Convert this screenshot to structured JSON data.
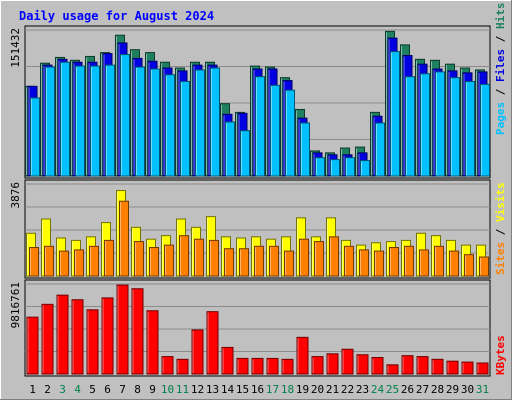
{
  "chart_data": {
    "type": "bar",
    "title": "Daily usage for August 2024",
    "categories": [
      "1",
      "2",
      "3",
      "4",
      "5",
      "6",
      "7",
      "8",
      "9",
      "10",
      "11",
      "12",
      "13",
      "14",
      "15",
      "16",
      "17",
      "18",
      "19",
      "20",
      "21",
      "22",
      "23",
      "24",
      "25",
      "26",
      "27",
      "28",
      "29",
      "30",
      "31"
    ],
    "weekend_days": [
      "3",
      "4",
      "10",
      "11",
      "17",
      "18",
      "24",
      "25",
      "31"
    ],
    "panels": [
      {
        "name": "hits",
        "max_label": "151432",
        "ylim": [
          0,
          151432
        ],
        "series": [
          {
            "name": "Hits",
            "color": "#1f8060",
            "values": [
              93000,
              117000,
              123000,
              120000,
              124000,
              128000,
              146000,
              131000,
              128000,
              118000,
              112000,
              118000,
              118000,
              75000,
              66000,
              114000,
              113000,
              102000,
              69000,
              26000,
              24000,
              29000,
              30000,
              66000,
              150000,
              136000,
              121000,
              120000,
              116000,
              112000,
              110000
            ]
          },
          {
            "name": "Files",
            "color": "#0000e0",
            "values": [
              93000,
              115000,
              121000,
              118000,
              118000,
              127000,
              138000,
              122000,
              119000,
              112000,
              109000,
              115000,
              115000,
              64000,
              65000,
              111000,
              111000,
              99000,
              60000,
              24000,
              22000,
              22000,
              24000,
              62000,
              143000,
              125000,
              116000,
              111000,
              109000,
              107000,
              108000
            ]
          },
          {
            "name": "Pages",
            "color": "#00c0ff",
            "values": [
              81000,
              113000,
              118000,
              114000,
              114000,
              115000,
              126000,
              113000,
              111000,
              105000,
              98000,
              110000,
              112000,
              56000,
              47000,
              103000,
              94000,
              89000,
              55000,
              19000,
              17000,
              19000,
              16000,
              55000,
              129000,
              103000,
              106000,
              108000,
              102000,
              98000,
              95000
            ]
          }
        ]
      },
      {
        "name": "visits",
        "max_label": "3876",
        "ylim": [
          0,
          3876
        ],
        "series": [
          {
            "name": "Visits",
            "color": "#ffff00",
            "values": [
              1800,
              2400,
              1600,
              1500,
              1650,
              2250,
              3600,
              2050,
              1550,
              1700,
              2400,
              2050,
              2500,
              1650,
              1600,
              1650,
              1550,
              1650,
              2450,
              1650,
              2450,
              1500,
              1300,
              1400,
              1450,
              1500,
              1800,
              1700,
              1500,
              1300,
              1300
            ]
          },
          {
            "name": "Sites",
            "color": "#ff8000",
            "values": [
              1200,
              1250,
              1050,
              1100,
              1250,
              1500,
              3150,
              1450,
              1200,
              1300,
              1700,
              1550,
              1500,
              1150,
              1150,
              1250,
              1250,
              1050,
              1550,
              1450,
              1650,
              1250,
              1100,
              1050,
              1200,
              1250,
              1100,
              1250,
              1050,
              900,
              800
            ]
          }
        ]
      },
      {
        "name": "kbytes",
        "max_label": "9816761",
        "ylim": [
          0,
          9816761
        ],
        "series": [
          {
            "name": "KBytes",
            "color": "#ff0000",
            "values": [
              6200000,
              7600000,
              8600000,
              8100000,
              7000000,
              8300000,
              9700000,
              9300000,
              6900000,
              1900000,
              1600000,
              4800000,
              6800000,
              2900000,
              1700000,
              1700000,
              1700000,
              1600000,
              4000000,
              1900000,
              2200000,
              2700000,
              2100000,
              1800000,
              1000000,
              2000000,
              1900000,
              1600000,
              1400000,
              1300000,
              1200000
            ]
          }
        ]
      }
    ],
    "right_label_groups": [
      {
        "labels": [
          "Pages",
          "Files",
          "Hits"
        ],
        "colors": [
          "#00c0ff",
          "#0000e0",
          "#1f8060"
        ]
      },
      {
        "labels": [
          "Sites",
          "Visits"
        ],
        "colors": [
          "#ff8000",
          "#ffff00"
        ]
      },
      {
        "labels": [
          "KBytes"
        ],
        "colors": [
          "#ff0000"
        ]
      }
    ],
    "separator": " / ",
    "colors": {
      "background": "#c0c0c0",
      "title": "#0000ff",
      "weekday_label": "#000000",
      "weekend_label": "#00804d",
      "grid": "#8c8c8c"
    }
  }
}
